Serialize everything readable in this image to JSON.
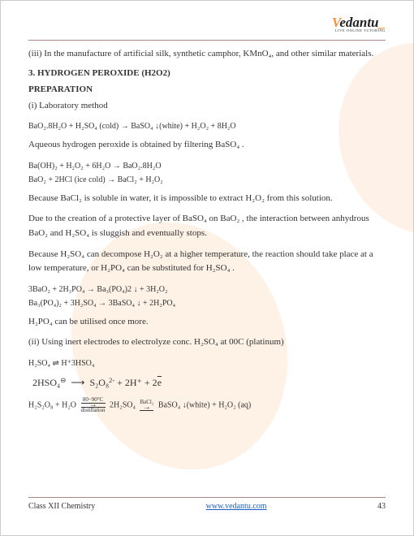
{
  "brand": {
    "v": "V",
    "rest": "edantu",
    "tagline": "LIVE ONLINE TUTORING"
  },
  "body": {
    "intro": "(iii) In the manufacture of artificial silk, synthetic camphor, KMnO₄, and other similar materials.",
    "section_title": "3. HYDROGEN PEROXIDE (H2O2)",
    "subsection": "PREPARATION",
    "lab_method": "(i) Laboratory method",
    "eq1": "BaO₂.8H₂O + H₂SO₄  (cold) → BaSO₄ ↓(white) + H₂O₂ + 8H₂O",
    "para1": "Aqueous hydrogen peroxide is obtained by filtering BaSO₄ .",
    "eq2a": "Ba(OH)₂ + H₂O₂ + 6H₂O → BaO₂.8H₂O",
    "eq2b": "BaO₂ + 2HCl  (ice cold) → BaCl₂ + H₂O₂",
    "para2": "Because BaCl₂  is soluble in water, it is impossible to extract H₂O₂  from this solution.",
    "para3": "Due to the creation of a protective layer of BaSO₄ on  BaO₂ , the interaction between anhydrous BaO₂  and H₂SO₄  is sluggish and eventually stops.",
    "para4": "Because H₂SO₄  can decompose H₂O₂  at a higher temperature, the reaction should take place at a low temperature, or H₂PO₄  can be substituted for H₂SO₄ .",
    "eq3a": "3BaO₂ + 2H₃PO₄ → Ba₃(PO₄)2 ↓ + 3H₂O₂",
    "eq3b": "Ba₃(PO₄)₂ + 3H₂SO₄ → 3BaSO₄ ↓ + 2H₂PO₄",
    "para5": "H₂PO₄  can be utilised once more.",
    "method2": "(ii) Using inert electrodes to electrolyze conc. H₂SO₄  at 00C (platinum)",
    "eq4": "H₂SO₄ ⇌ H⁺3HSO₄",
    "eq5_lhs": "2HSO₄",
    "eq5_rhs_a": "S₂O₈",
    "eq5_rhs_b": " + 2H⁺ + 2",
    "eq5_rhs_c": "e",
    "eq6_a": "H₂S₂O₈ + H₂O ",
    "eq6_top": "80−90°C",
    "eq6_bot": "distillation",
    "eq6_b": " 2H₂SO₄ ",
    "eq6_mid": "BaCl₂",
    "eq6_c": " BaSO₄ ↓(white) + H₂O₂ (aq)"
  },
  "footer": {
    "left": "Class XII Chemistry",
    "link": "www.vedantu.com",
    "page": "43"
  },
  "colors": {
    "accent": "#f6913d",
    "text": "#333333",
    "link": "#1a5fc7",
    "rule": "#aa8888",
    "watermark": "rgba(249,151,63,0.12)"
  }
}
